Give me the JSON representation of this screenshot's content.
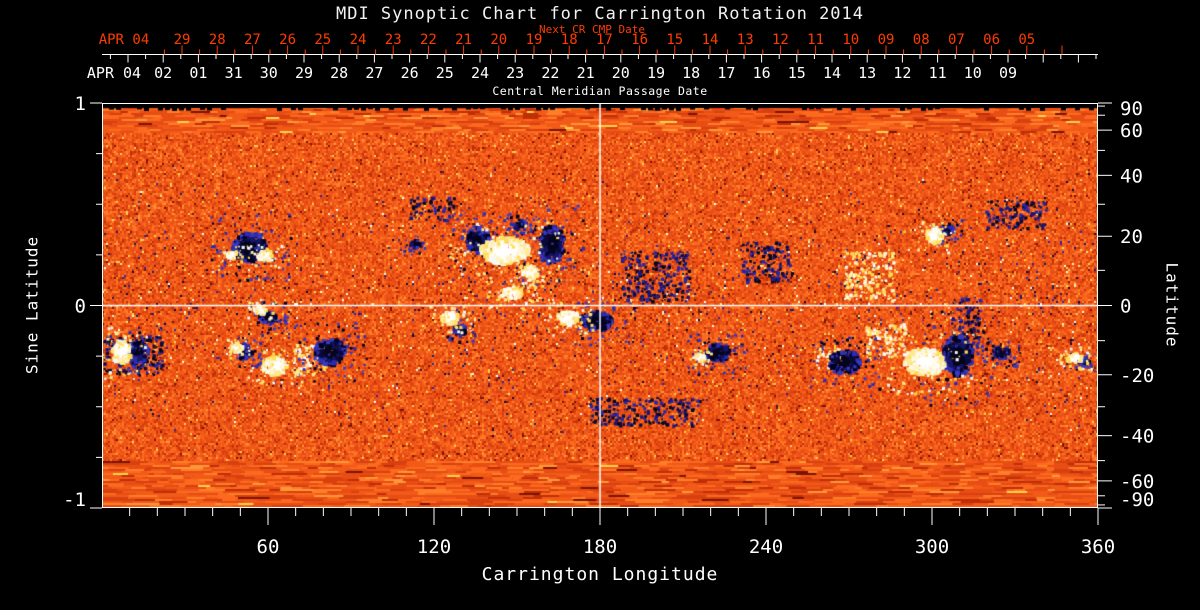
{
  "chart_data": {
    "type": "heatmap",
    "title": "MDI Synoptic Chart for Carrington Rotation 2014",
    "description": "MDI solar synoptic magnetogram map; orange-red quiet-sun noise with white (positive polarity) and dark blue/black (negative polarity) active regions.",
    "top_axis_next_cr": {
      "label": "Next CR CMP Date",
      "month_label": "APR 04",
      "day_labels": [
        "29",
        "28",
        "27",
        "26",
        "25",
        "24",
        "23",
        "22",
        "21",
        "20",
        "19",
        "18",
        "17",
        "16",
        "15",
        "14",
        "13",
        "12",
        "11",
        "10",
        "09",
        "08",
        "07",
        "06",
        "05"
      ]
    },
    "cmp_axis": {
      "title": "Central Meridian Passage Date",
      "month_label": "APR 04",
      "day_labels": [
        "02",
        "01",
        "31",
        "30",
        "29",
        "28",
        "27",
        "26",
        "25",
        "24",
        "23",
        "22",
        "21",
        "20",
        "19",
        "18",
        "17",
        "16",
        "15",
        "14",
        "13",
        "12",
        "11",
        "10",
        "09"
      ]
    },
    "x_axis": {
      "title": "Carrington Longitude",
      "range": [
        0,
        360
      ],
      "major_ticks": [
        60,
        120,
        180,
        240,
        300,
        360
      ],
      "minor_step_deg": 10
    },
    "y_axis_left": {
      "title": "Sine Latitude",
      "range": [
        -1,
        1
      ],
      "major_ticks": [
        1,
        0,
        -1
      ],
      "minor_step": 0.25
    },
    "y_axis_right": {
      "title": "Latitude",
      "major_ticks": [
        90,
        60,
        40,
        20,
        0,
        -20,
        -40,
        -60,
        -90
      ],
      "minor_step_deg": 10
    },
    "reference_lines": {
      "longitude_deg": 180,
      "sine_latitude": 0
    },
    "colors": {
      "background": "#000000",
      "title_text": "#f2f2f2",
      "axis_text": "#ffffff",
      "next_cr_text": "#ff3c00",
      "background_noise": [
        "#7a1400",
        "#c02e08",
        "#d84010",
        "#e84d14",
        "#f25a18",
        "#fb6a1e",
        "#ff7e28",
        "#ff9838",
        "#ffd24e"
      ],
      "positive_core": "#ffffff",
      "positive_mid": [
        "#fffdf2",
        "#fff3c6"
      ],
      "positive_fringe": [
        "#ffe98e",
        "#ffdd55",
        "#f8f8f0"
      ],
      "negative_core": "#05051c",
      "negative_mid": [
        "#0a0a38",
        "#16166a"
      ],
      "negative_fringe": [
        "#2c2cae",
        "#3a3ac0",
        "#000022"
      ]
    },
    "active_regions": [
      {
        "lon": 53.5,
        "sin": 0.285,
        "type": "neg",
        "w": 34,
        "h": 30
      },
      {
        "lon": 58.9,
        "sin": 0.245,
        "type": "pos",
        "w": 16,
        "h": 10
      },
      {
        "lon": 47.0,
        "sin": 0.25,
        "type": "pos",
        "w": 9,
        "h": 8
      },
      {
        "lon": 60.0,
        "sin": -0.06,
        "type": "neg",
        "w": 16,
        "h": 14
      },
      {
        "lon": 57.5,
        "sin": -0.02,
        "type": "pos",
        "w": 12,
        "h": 8
      },
      {
        "lon": 7.2,
        "sin": -0.23,
        "type": "pos",
        "w": 20,
        "h": 22
      },
      {
        "lon": 13.0,
        "sin": -0.23,
        "type": "neg",
        "w": 20,
        "h": 20
      },
      {
        "lon": 11.0,
        "sin": -0.24,
        "type": "neg_speckle",
        "w": 60,
        "h": 40
      },
      {
        "lon": 51.7,
        "sin": -0.23,
        "type": "neg",
        "w": 14,
        "h": 12
      },
      {
        "lon": 49.0,
        "sin": -0.21,
        "type": "pos",
        "w": 10,
        "h": 8
      },
      {
        "lon": 62.5,
        "sin": -0.3,
        "type": "pos",
        "w": 24,
        "h": 18
      },
      {
        "lon": 82.4,
        "sin": -0.23,
        "type": "neg",
        "w": 30,
        "h": 26
      },
      {
        "lon": 75.0,
        "sin": -0.26,
        "type": "pos_speckle",
        "w": 34,
        "h": 30
      },
      {
        "lon": 113.0,
        "sin": 0.3,
        "type": "neg",
        "w": 10,
        "h": 8
      },
      {
        "lon": 119.0,
        "sin": 0.48,
        "type": "neg_speckle",
        "w": 44,
        "h": 24
      },
      {
        "lon": 136.0,
        "sin": 0.32,
        "type": "neg",
        "w": 22,
        "h": 26
      },
      {
        "lon": 145.7,
        "sin": 0.27,
        "type": "pos",
        "w": 48,
        "h": 26
      },
      {
        "lon": 151.0,
        "sin": 0.4,
        "type": "neg",
        "w": 14,
        "h": 10
      },
      {
        "lon": 162.6,
        "sin": 0.3,
        "type": "neg",
        "w": 26,
        "h": 38
      },
      {
        "lon": 155.0,
        "sin": 0.16,
        "type": "pos",
        "w": 16,
        "h": 12
      },
      {
        "lon": 148.0,
        "sin": 0.06,
        "type": "pos",
        "w": 22,
        "h": 12
      },
      {
        "lon": 125.8,
        "sin": -0.06,
        "type": "pos",
        "w": 18,
        "h": 12
      },
      {
        "lon": 129.5,
        "sin": -0.12,
        "type": "neg",
        "w": 12,
        "h": 10
      },
      {
        "lon": 168.4,
        "sin": -0.06,
        "type": "pos",
        "w": 20,
        "h": 14
      },
      {
        "lon": 179.3,
        "sin": -0.08,
        "type": "neg",
        "w": 30,
        "h": 20
      },
      {
        "lon": 200.0,
        "sin": 0.15,
        "type": "neg_speckle",
        "w": 70,
        "h": 50
      },
      {
        "lon": 240.0,
        "sin": 0.22,
        "type": "neg_speckle",
        "w": 50,
        "h": 40
      },
      {
        "lon": 222.6,
        "sin": -0.23,
        "type": "neg",
        "w": 26,
        "h": 18
      },
      {
        "lon": 216.0,
        "sin": -0.26,
        "type": "pos",
        "w": 10,
        "h": 8
      },
      {
        "lon": 268.5,
        "sin": -0.28,
        "type": "neg",
        "w": 30,
        "h": 22
      },
      {
        "lon": 262.0,
        "sin": -0.26,
        "type": "pos_speckle",
        "w": 26,
        "h": 22
      },
      {
        "lon": 277.0,
        "sin": 0.15,
        "type": "pos_speckle",
        "w": 50,
        "h": 50
      },
      {
        "lon": 283.0,
        "sin": -0.17,
        "type": "pos_speckle",
        "w": 40,
        "h": 35
      },
      {
        "lon": 301.0,
        "sin": 0.34,
        "type": "pos",
        "w": 16,
        "h": 14
      },
      {
        "lon": 305.7,
        "sin": 0.37,
        "type": "neg",
        "w": 12,
        "h": 10
      },
      {
        "lon": 297.4,
        "sin": -0.28,
        "type": "pos",
        "w": 40,
        "h": 28
      },
      {
        "lon": 309.4,
        "sin": -0.25,
        "type": "neg",
        "w": 30,
        "h": 40
      },
      {
        "lon": 312.0,
        "sin": -0.08,
        "type": "neg_speckle",
        "w": 30,
        "h": 50
      },
      {
        "lon": 330.0,
        "sin": 0.45,
        "type": "neg_speckle",
        "w": 60,
        "h": 30
      },
      {
        "lon": 325.3,
        "sin": -0.23,
        "type": "neg",
        "w": 16,
        "h": 12
      },
      {
        "lon": 351.6,
        "sin": -0.26,
        "type": "pos",
        "w": 14,
        "h": 10
      },
      {
        "lon": 355.0,
        "sin": -0.28,
        "type": "neg",
        "w": 10,
        "h": 8
      },
      {
        "lon": 196.0,
        "sin": -0.52,
        "type": "neg_speckle",
        "w": 110,
        "h": 28
      }
    ]
  }
}
